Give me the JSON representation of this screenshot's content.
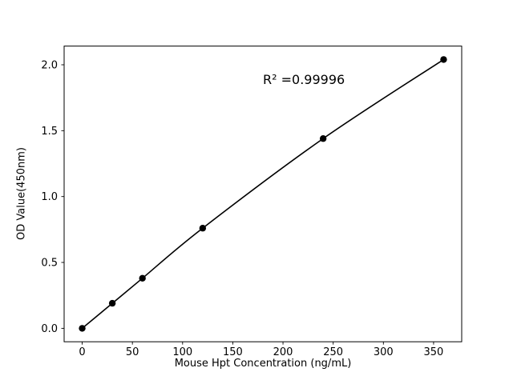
{
  "chart_data": {
    "type": "line",
    "title": "",
    "xlabel": "Mouse Hpt Concentration (ng/mL)",
    "ylabel": "OD Value(450nm)",
    "annotation": "R² =0.99996",
    "x": [
      0,
      30,
      60,
      120,
      240,
      360
    ],
    "y": [
      0.0,
      0.19,
      0.38,
      0.76,
      1.44,
      2.04
    ],
    "xlim": [
      -18,
      378
    ],
    "ylim": [
      -0.102,
      2.142
    ],
    "xticks": [
      0,
      50,
      100,
      150,
      200,
      250,
      300,
      350
    ],
    "xtick_labels": [
      "0",
      "50",
      "100",
      "150",
      "200",
      "250",
      "300",
      "350"
    ],
    "yticks": [
      0.0,
      0.5,
      1.0,
      1.5,
      2.0
    ],
    "ytick_labels": [
      "0.0",
      "0.5",
      "1.0",
      "1.5",
      "2.0"
    ],
    "line_color": "#000000",
    "marker_color": "#000000",
    "axis_color": "#000000",
    "background": "#ffffff",
    "grid": false,
    "legend": false,
    "marker": "circle"
  }
}
